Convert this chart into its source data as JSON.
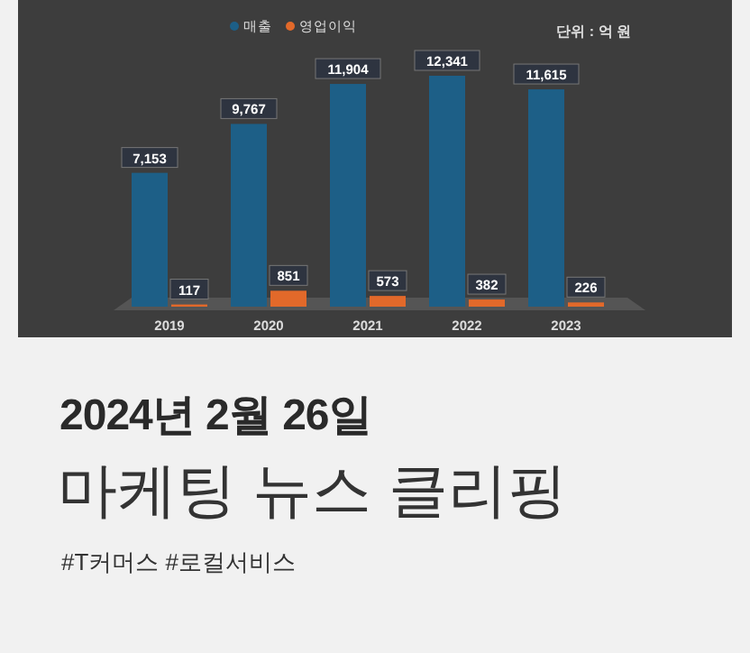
{
  "chart_data": {
    "type": "bar",
    "categories": [
      "2019",
      "2020",
      "2021",
      "2022",
      "2023"
    ],
    "series": [
      {
        "name": "매출",
        "color": "#1d5f87",
        "values": [
          7153,
          9767,
          11904,
          12341,
          11615
        ],
        "value_labels": [
          "7,153",
          "9,767",
          "11,904",
          "12,341",
          "11,615"
        ]
      },
      {
        "name": "영업이익",
        "color": "#e2692a",
        "values": [
          117,
          851,
          573,
          382,
          226
        ],
        "value_labels": [
          "117",
          "851",
          "573",
          "382",
          "226"
        ]
      }
    ],
    "legend": "top",
    "annotations": [
      "단위 : 억 원",
      "2024년 2월 26일",
      "마케팅 뉴스 클리핑",
      "#T커머스 #로컬서비스"
    ]
  }
}
